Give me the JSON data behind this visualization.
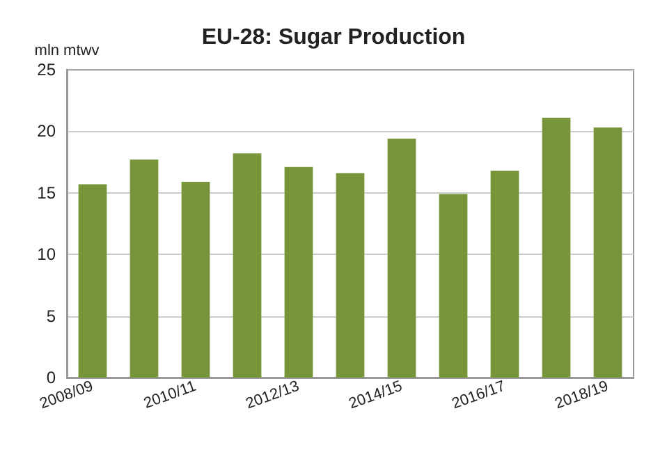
{
  "chart_data": {
    "type": "bar",
    "title": "EU-28: Sugar Production",
    "ylabel": "mln mtwv",
    "categories": [
      "2008/09",
      null,
      "2010/11",
      null,
      "2012/13",
      null,
      "2014/15",
      null,
      "2016/17",
      null,
      "2018/19"
    ],
    "values": [
      15.7,
      17.7,
      15.9,
      18.2,
      17.1,
      16.6,
      19.4,
      14.9,
      16.8,
      21.1,
      20.3
    ],
    "color": "#77963b",
    "ylim": [
      0,
      25
    ],
    "yticks": [
      0,
      5,
      10,
      15,
      20,
      25
    ],
    "grid": "y"
  }
}
